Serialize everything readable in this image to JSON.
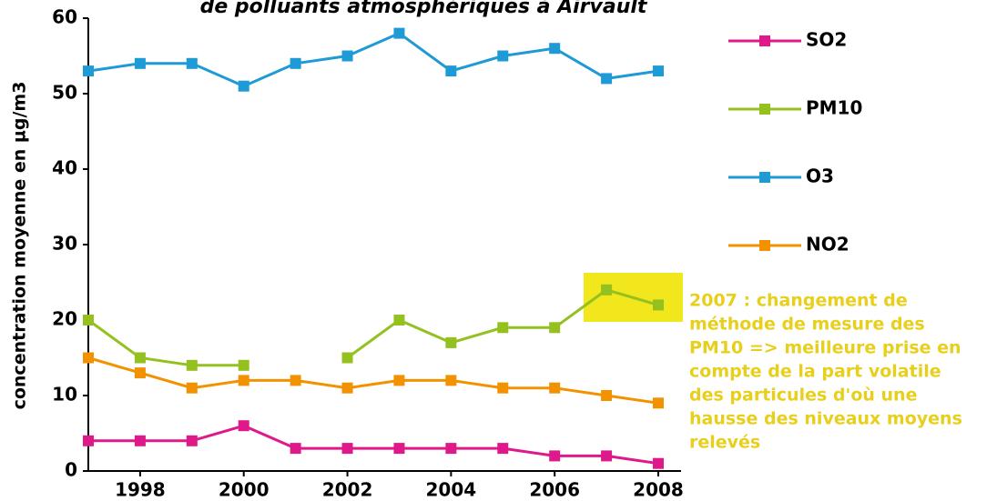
{
  "chart_data": {
    "type": "line",
    "title": "de polluants atmosphériques à Airvault",
    "y_label": "concentration moyenne en µg/m3",
    "x": [
      1997,
      1998,
      1999,
      2000,
      2001,
      2002,
      2003,
      2004,
      2005,
      2006,
      2007,
      2008
    ],
    "series": [
      {
        "name": "SO2",
        "color": "#e0198a",
        "values": [
          4,
          4,
          4,
          6,
          3,
          3,
          3,
          3,
          3,
          2,
          2,
          1
        ]
      },
      {
        "name": "PM10",
        "color": "#94c11f",
        "values": [
          20,
          15,
          14,
          14,
          null,
          15,
          20,
          17,
          19,
          19,
          24,
          22
        ]
      },
      {
        "name": "O3",
        "color": "#1e9ad6",
        "values": [
          53,
          54,
          54,
          51,
          54,
          55,
          58,
          53,
          55,
          56,
          52,
          53
        ]
      },
      {
        "name": "NO2",
        "color": "#f39200",
        "values": [
          15,
          13,
          11,
          12,
          12,
          11,
          12,
          12,
          11,
          11,
          10,
          9
        ]
      }
    ],
    "xlim": [
      1997,
      2008
    ],
    "xticks": [
      1998,
      2000,
      2002,
      2004,
      2006,
      2008
    ],
    "ylim": [
      0,
      60
    ],
    "yticks": [
      0,
      10,
      20,
      30,
      40,
      50,
      60
    ],
    "grid": false,
    "annotation": [
      "2007 :  changement de",
      "méthode de mesure des",
      "PM10 => meilleure prise en",
      "compte de la part volatile",
      "des particules d'où une",
      "hausse des niveaux moyens",
      "relevés"
    ],
    "annotation_color": "#e8cf1c"
  }
}
